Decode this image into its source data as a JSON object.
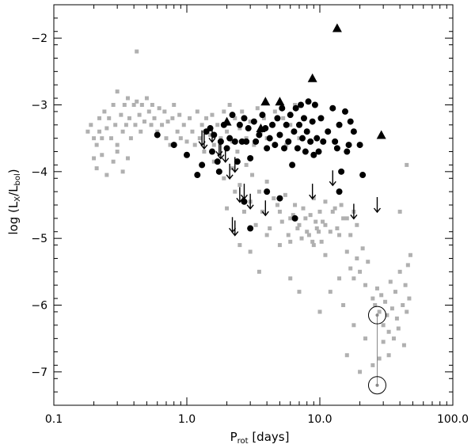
{
  "chart_data": {
    "type": "scatter",
    "x_scale": "log",
    "xlim": [
      0.1,
      100.0
    ],
    "ylim": [
      -7.5,
      -1.5
    ],
    "x_ticks": [
      {
        "value": 0.1,
        "label": "0.1"
      },
      {
        "value": 1.0,
        "label": "1.0"
      },
      {
        "value": 10.0,
        "label": "10.0"
      },
      {
        "value": 100.0,
        "label": "100.0"
      }
    ],
    "y_ticks": [
      {
        "value": -2,
        "label": "−2"
      },
      {
        "value": -3,
        "label": "−3"
      },
      {
        "value": -4,
        "label": "−4"
      },
      {
        "value": -5,
        "label": "−5"
      },
      {
        "value": -6,
        "label": "−6"
      },
      {
        "value": -7,
        "label": "−7"
      }
    ],
    "xlabel": {
      "main": "P",
      "sub": "rot",
      "rest": " [days]"
    },
    "ylabel": {
      "pre": "log (L",
      "sub1": "X",
      "mid": "/L",
      "sub2": "bol",
      "post": ")"
    },
    "grid": false,
    "colors": {
      "gray": "#b0b0b0",
      "black": "#000000",
      "connector": "#888888"
    },
    "series": [
      {
        "marker": "gray-square",
        "points": [
          [
            0.18,
            -3.4
          ],
          [
            0.19,
            -3.3
          ],
          [
            0.2,
            -3.5
          ],
          [
            0.21,
            -3.6
          ],
          [
            0.22,
            -3.2
          ],
          [
            0.22,
            -3.4
          ],
          [
            0.23,
            -3.5
          ],
          [
            0.24,
            -3.1
          ],
          [
            0.25,
            -3.35
          ],
          [
            0.26,
            -3.2
          ],
          [
            0.27,
            -3.5
          ],
          [
            0.28,
            -3.0
          ],
          [
            0.29,
            -3.3
          ],
          [
            0.3,
            -2.8
          ],
          [
            0.3,
            -3.6
          ],
          [
            0.32,
            -3.15
          ],
          [
            0.33,
            -3.4
          ],
          [
            0.34,
            -3.0
          ],
          [
            0.35,
            -3.3
          ],
          [
            0.36,
            -2.9
          ],
          [
            0.37,
            -3.2
          ],
          [
            0.38,
            -3.5
          ],
          [
            0.4,
            -3.0
          ],
          [
            0.41,
            -3.3
          ],
          [
            0.42,
            -2.95
          ],
          [
            0.42,
            -2.2
          ],
          [
            0.44,
            -3.15
          ],
          [
            0.45,
            -3.4
          ],
          [
            0.46,
            -3.0
          ],
          [
            0.48,
            -3.25
          ],
          [
            0.5,
            -2.9
          ],
          [
            0.52,
            -3.1
          ],
          [
            0.54,
            -3.3
          ],
          [
            0.55,
            -3.0
          ],
          [
            0.57,
            -3.2
          ],
          [
            0.6,
            -3.4
          ],
          [
            0.62,
            -3.05
          ],
          [
            0.65,
            -3.3
          ],
          [
            0.68,
            -3.1
          ],
          [
            0.7,
            -3.5
          ],
          [
            0.72,
            -3.25
          ],
          [
            0.75,
            -3.6
          ],
          [
            0.78,
            -3.2
          ],
          [
            0.8,
            -3.0
          ],
          [
            0.85,
            -3.4
          ],
          [
            0.88,
            -3.15
          ],
          [
            0.9,
            -3.5
          ],
          [
            0.95,
            -3.3
          ],
          [
            1.0,
            -3.55
          ],
          [
            1.05,
            -3.2
          ],
          [
            1.1,
            -3.4
          ],
          [
            1.15,
            -3.6
          ],
          [
            1.2,
            -3.1
          ],
          [
            1.25,
            -3.5
          ],
          [
            1.3,
            -3.3
          ],
          [
            1.35,
            -3.7
          ],
          [
            1.4,
            -3.2
          ],
          [
            1.5,
            -3.45
          ],
          [
            1.55,
            -3.15
          ],
          [
            1.6,
            -3.6
          ],
          [
            1.7,
            -3.3
          ],
          [
            1.8,
            -3.5
          ],
          [
            1.9,
            -3.1
          ],
          [
            2.0,
            -3.4
          ],
          [
            2.1,
            -3.0
          ],
          [
            2.2,
            -3.55
          ],
          [
            2.3,
            -3.2
          ],
          [
            2.4,
            -3.7
          ],
          [
            2.5,
            -3.35
          ],
          [
            2.6,
            -3.1
          ],
          [
            2.8,
            -3.5
          ],
          [
            3.0,
            -3.25
          ],
          [
            3.2,
            -3.6
          ],
          [
            3.4,
            -3.05
          ],
          [
            3.6,
            -3.4
          ],
          [
            3.8,
            -3.2
          ],
          [
            4.0,
            -3.5
          ],
          [
            4.3,
            -3.3
          ],
          [
            4.6,
            -3.1
          ],
          [
            5.0,
            -3.45
          ],
          [
            5.3,
            -3.2
          ],
          [
            5.6,
            -3.6
          ],
          [
            6.0,
            -3.3
          ],
          [
            6.5,
            -3.0
          ],
          [
            7.0,
            -3.5
          ],
          [
            0.2,
            -3.8
          ],
          [
            0.21,
            -3.95
          ],
          [
            0.23,
            -3.75
          ],
          [
            0.25,
            -4.05
          ],
          [
            0.28,
            -3.85
          ],
          [
            0.3,
            -3.7
          ],
          [
            0.33,
            -4.0
          ],
          [
            0.36,
            -3.8
          ],
          [
            1.3,
            -3.9
          ],
          [
            1.6,
            -3.85
          ],
          [
            1.9,
            -4.1
          ],
          [
            2.2,
            -3.95
          ],
          [
            2.5,
            -4.2
          ],
          [
            2.8,
            -3.9
          ],
          [
            3.1,
            -4.05
          ],
          [
            3.5,
            -4.3
          ],
          [
            4.0,
            -4.15
          ],
          [
            4.5,
            -4.4
          ],
          [
            5.0,
            -4.6
          ],
          [
            5.5,
            -4.35
          ],
          [
            6.0,
            -4.7
          ],
          [
            6.5,
            -4.5
          ],
          [
            7.0,
            -4.8
          ],
          [
            7.5,
            -4.55
          ],
          [
            8.0,
            -4.9
          ],
          [
            8.5,
            -4.65
          ],
          [
            9.0,
            -4.4
          ],
          [
            9.5,
            -4.85
          ],
          [
            10.0,
            -4.6
          ],
          [
            10.5,
            -4.75
          ],
          [
            11.0,
            -4.45
          ],
          [
            12.0,
            -4.9
          ],
          [
            13.0,
            -4.55
          ],
          [
            14.0,
            -4.95
          ],
          [
            15.0,
            -4.7
          ],
          [
            2.0,
            -4.55
          ],
          [
            2.3,
            -4.3
          ],
          [
            2.7,
            -4.6
          ],
          [
            3.0,
            -4.45
          ],
          [
            3.3,
            -4.8
          ],
          [
            3.7,
            -4.6
          ],
          [
            4.2,
            -4.85
          ],
          [
            4.8,
            -4.5
          ],
          [
            5.2,
            -4.75
          ],
          [
            5.8,
            -4.95
          ],
          [
            6.3,
            -4.65
          ],
          [
            6.8,
            -4.85
          ],
          [
            7.3,
            -5.0
          ],
          [
            7.8,
            -4.7
          ],
          [
            8.3,
            -4.95
          ],
          [
            8.8,
            -5.05
          ],
          [
            9.3,
            -4.75
          ],
          [
            9.8,
            -4.9
          ],
          [
            10.3,
            -5.05
          ],
          [
            11.0,
            -4.8
          ],
          [
            12.5,
            -4.6
          ],
          [
            13.5,
            -4.85
          ],
          [
            14.5,
            -4.5
          ],
          [
            16.0,
            -4.7
          ],
          [
            17.0,
            -4.95
          ],
          [
            18.0,
            -4.6
          ],
          [
            19.0,
            -4.8
          ],
          [
            2.5,
            -5.1
          ],
          [
            3.0,
            -5.2
          ],
          [
            4.0,
            -4.95
          ],
          [
            5.0,
            -5.1
          ],
          [
            6.0,
            -5.05
          ],
          [
            3.5,
            -5.5
          ],
          [
            9.0,
            -5.1
          ],
          [
            11.0,
            -5.25
          ],
          [
            16.0,
            -5.2
          ],
          [
            17.0,
            -5.45
          ],
          [
            18.0,
            -5.6
          ],
          [
            19.0,
            -5.3
          ],
          [
            20.0,
            -5.5
          ],
          [
            21.0,
            -5.15
          ],
          [
            22.0,
            -5.7
          ],
          [
            23.0,
            -5.35
          ],
          [
            6.0,
            -5.6
          ],
          [
            7.0,
            -5.8
          ],
          [
            14.0,
            -5.6
          ],
          [
            25.0,
            -5.9
          ],
          [
            26.0,
            -6.0
          ],
          [
            27.0,
            -5.75
          ],
          [
            28.0,
            -6.1
          ],
          [
            29.0,
            -5.85
          ],
          [
            30.0,
            -6.3
          ],
          [
            31.0,
            -5.95
          ],
          [
            32.0,
            -6.15
          ],
          [
            33.0,
            -6.4
          ],
          [
            34.0,
            -5.65
          ],
          [
            35.0,
            -6.05
          ],
          [
            36.0,
            -6.5
          ],
          [
            37.0,
            -5.8
          ],
          [
            38.0,
            -6.2
          ],
          [
            39.0,
            -6.35
          ],
          [
            40.0,
            -5.5
          ],
          [
            42.0,
            -6.0
          ],
          [
            43.0,
            -6.6
          ],
          [
            44.0,
            -5.7
          ],
          [
            45.0,
            -6.1
          ],
          [
            46.0,
            -5.4
          ],
          [
            47.0,
            -5.9
          ],
          [
            48.0,
            -5.25
          ],
          [
            30.0,
            -6.55
          ],
          [
            28.0,
            -6.8
          ],
          [
            25.0,
            -6.9
          ],
          [
            22.0,
            -6.5
          ],
          [
            18.0,
            -6.3
          ],
          [
            16.0,
            -6.75
          ],
          [
            10.0,
            -6.1
          ],
          [
            20.0,
            -7.0
          ],
          [
            33.0,
            -6.75
          ],
          [
            15.0,
            -6.0
          ],
          [
            12.0,
            -5.8
          ],
          [
            45.0,
            -3.9
          ],
          [
            40.0,
            -4.6
          ]
        ]
      },
      {
        "marker": "black-circle",
        "points": [
          [
            0.6,
            -3.45
          ],
          [
            0.8,
            -3.6
          ],
          [
            1.0,
            -3.75
          ],
          [
            1.2,
            -4.05
          ],
          [
            1.3,
            -3.9
          ],
          [
            1.4,
            -3.4
          ],
          [
            1.5,
            -3.35
          ],
          [
            1.55,
            -3.7
          ],
          [
            1.6,
            -3.45
          ],
          [
            1.7,
            -3.85
          ],
          [
            1.75,
            -4.0
          ],
          [
            1.8,
            -3.55
          ],
          [
            1.9,
            -3.3
          ],
          [
            2.0,
            -3.65
          ],
          [
            2.1,
            -3.5
          ],
          [
            2.2,
            -3.15
          ],
          [
            2.3,
            -3.55
          ],
          [
            2.4,
            -3.85
          ],
          [
            2.5,
            -3.3
          ],
          [
            2.6,
            -3.55
          ],
          [
            2.7,
            -3.2
          ],
          [
            2.8,
            -3.55
          ],
          [
            2.9,
            -3.35
          ],
          [
            3.0,
            -3.8
          ],
          [
            3.2,
            -3.25
          ],
          [
            3.3,
            -3.55
          ],
          [
            3.5,
            -3.45
          ],
          [
            3.7,
            -3.15
          ],
          [
            3.9,
            -3.35
          ],
          [
            4.0,
            -3.65
          ],
          [
            4.2,
            -3.5
          ],
          [
            4.4,
            -3.3
          ],
          [
            4.6,
            -3.6
          ],
          [
            4.8,
            -3.2
          ],
          [
            5.0,
            -3.45
          ],
          [
            5.2,
            -3.05
          ],
          [
            5.4,
            -3.65
          ],
          [
            5.6,
            -3.3
          ],
          [
            5.8,
            -3.55
          ],
          [
            6.0,
            -3.15
          ],
          [
            6.2,
            -3.9
          ],
          [
            6.4,
            -3.4
          ],
          [
            6.6,
            -3.05
          ],
          [
            6.8,
            -3.65
          ],
          [
            7.0,
            -3.3
          ],
          [
            7.2,
            -3.0
          ],
          [
            7.4,
            -3.5
          ],
          [
            7.6,
            -3.2
          ],
          [
            7.8,
            -3.7
          ],
          [
            8.0,
            -3.4
          ],
          [
            8.2,
            -2.95
          ],
          [
            8.5,
            -3.55
          ],
          [
            8.8,
            -3.25
          ],
          [
            9.0,
            -3.75
          ],
          [
            9.2,
            -3.0
          ],
          [
            9.5,
            -3.5
          ],
          [
            9.8,
            -3.7
          ],
          [
            10.2,
            -3.2
          ],
          [
            10.6,
            -3.55
          ],
          [
            11.5,
            -3.4
          ],
          [
            12.5,
            -3.05
          ],
          [
            13.0,
            -3.55
          ],
          [
            13.5,
            -3.65
          ],
          [
            14.0,
            -3.3
          ],
          [
            14.5,
            -4.0
          ],
          [
            15.5,
            -3.1
          ],
          [
            16.0,
            -3.7
          ],
          [
            16.5,
            -3.6
          ],
          [
            17.0,
            -3.25
          ],
          [
            18.0,
            -3.4
          ],
          [
            20.0,
            -3.6
          ],
          [
            21.0,
            -4.05
          ],
          [
            14.0,
            -4.3
          ],
          [
            6.5,
            -4.7
          ],
          [
            5.0,
            -4.4
          ],
          [
            4.0,
            -4.3
          ],
          [
            3.0,
            -4.85
          ],
          [
            2.7,
            -4.45
          ]
        ]
      },
      {
        "marker": "black-triangle",
        "points": [
          [
            2.0,
            -3.25
          ],
          [
            3.9,
            -2.95
          ],
          [
            5.0,
            -2.95
          ],
          [
            3.6,
            -3.35
          ],
          [
            8.8,
            -2.6
          ],
          [
            13.5,
            -1.85
          ],
          [
            29.0,
            -3.45
          ]
        ]
      },
      {
        "marker": "down-arrow",
        "points": [
          [
            1.3,
            -3.5
          ],
          [
            1.55,
            -3.45
          ],
          [
            1.8,
            -3.7
          ],
          [
            1.95,
            -3.75
          ],
          [
            2.1,
            -4.0
          ],
          [
            2.3,
            -3.9
          ],
          [
            2.5,
            -4.35
          ],
          [
            2.7,
            -4.3
          ],
          [
            3.0,
            -4.45
          ],
          [
            3.9,
            -4.55
          ],
          [
            1.35,
            -3.55
          ],
          [
            1.75,
            -3.65
          ],
          [
            2.3,
            -4.85
          ],
          [
            8.8,
            -4.3
          ],
          [
            12.5,
            -4.1
          ],
          [
            18.0,
            -4.6
          ],
          [
            27.0,
            -4.5
          ],
          [
            2.2,
            -4.8
          ]
        ]
      },
      {
        "marker": "gray-ring-pair",
        "points": [
          [
            27.0,
            -6.15
          ],
          [
            27.0,
            -7.2
          ]
        ]
      }
    ]
  }
}
